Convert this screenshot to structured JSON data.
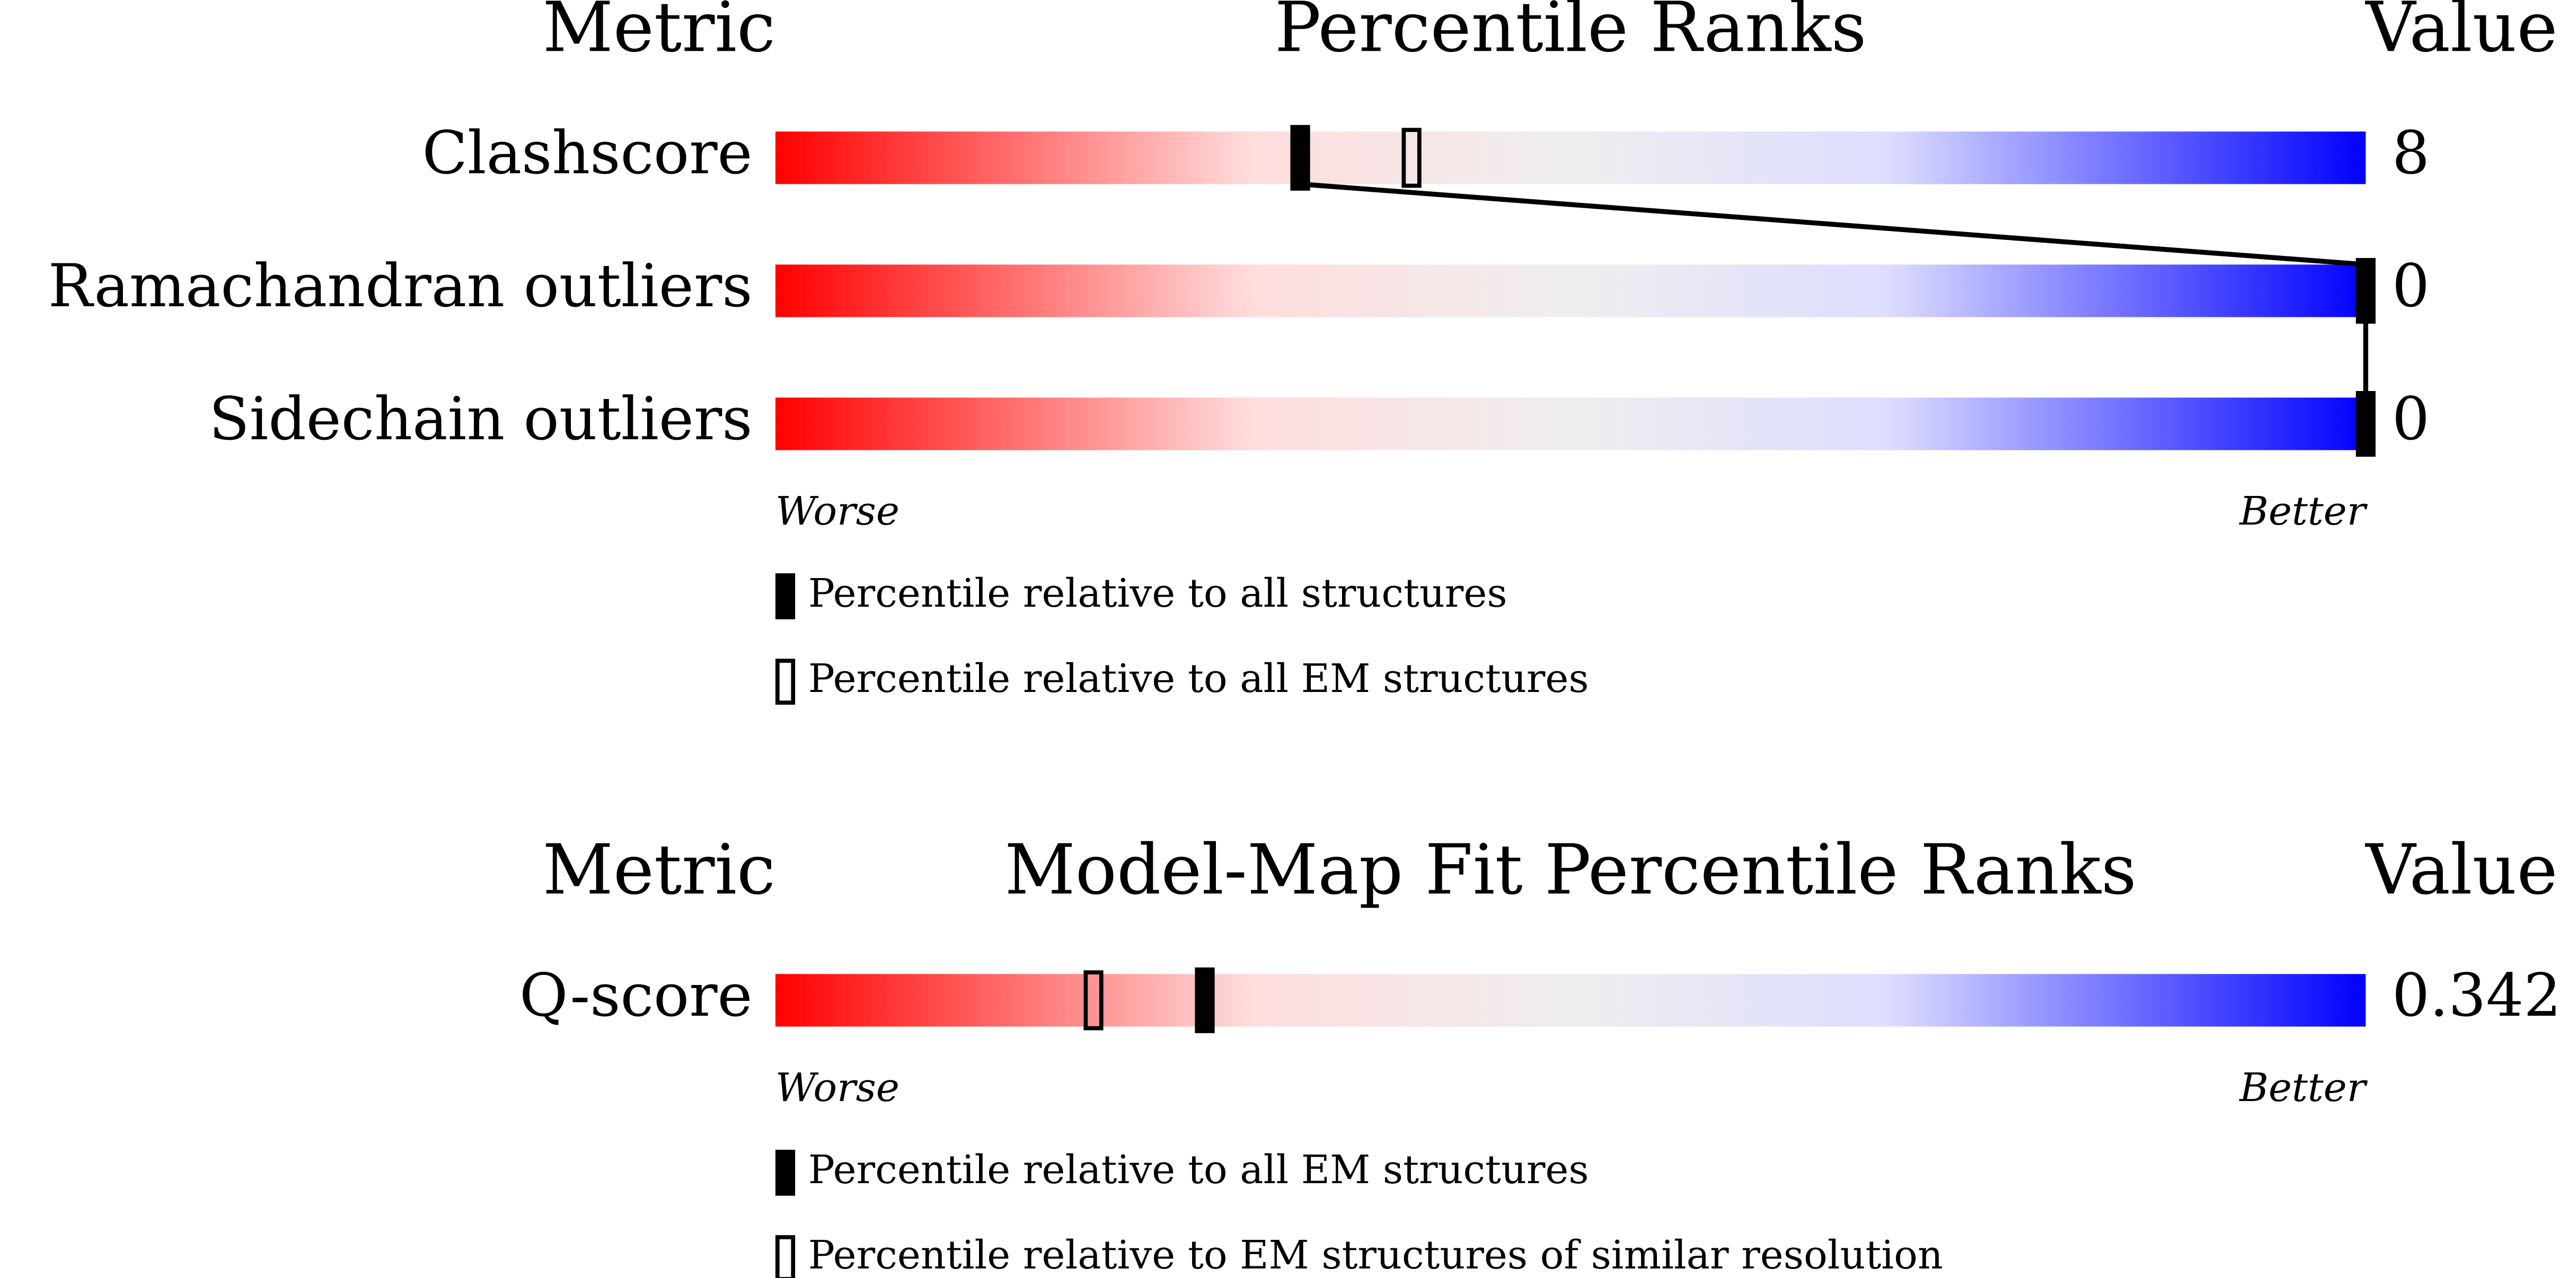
{
  "chart_data": [
    {
      "type": "percentile",
      "metric_header": "Metric",
      "title": "Percentile Ranks",
      "value_header": "Value",
      "categories": [
        "Clashscore",
        "Ramachandran outliers",
        "Sidechain outliers"
      ],
      "values": [
        8,
        0,
        0
      ],
      "xlim": [
        0,
        100
      ],
      "low_label": "Worse",
      "high_label": "Better",
      "series": [
        {
          "name": "Percentile relative to all structures",
          "marker": "filled",
          "color": "#000000",
          "values": [
            33,
            100,
            100
          ]
        },
        {
          "name": "Percentile relative to all EM structures",
          "marker": "open",
          "color": "#000000",
          "values": [
            40,
            null,
            null
          ]
        }
      ]
    },
    {
      "type": "percentile",
      "metric_header": "Metric",
      "title": "Model-Map Fit Percentile Ranks",
      "value_header": "Value",
      "categories": [
        "Q-score"
      ],
      "values": [
        0.342
      ],
      "xlim": [
        0,
        100
      ],
      "low_label": "Worse",
      "high_label": "Better",
      "series": [
        {
          "name": "Percentile relative to all EM structures",
          "marker": "filled",
          "color": "#000000",
          "values": [
            27
          ]
        },
        {
          "name": "Percentile relative to EM structures of similar resolution",
          "marker": "open",
          "color": "#000000",
          "values": [
            20
          ]
        }
      ]
    }
  ]
}
